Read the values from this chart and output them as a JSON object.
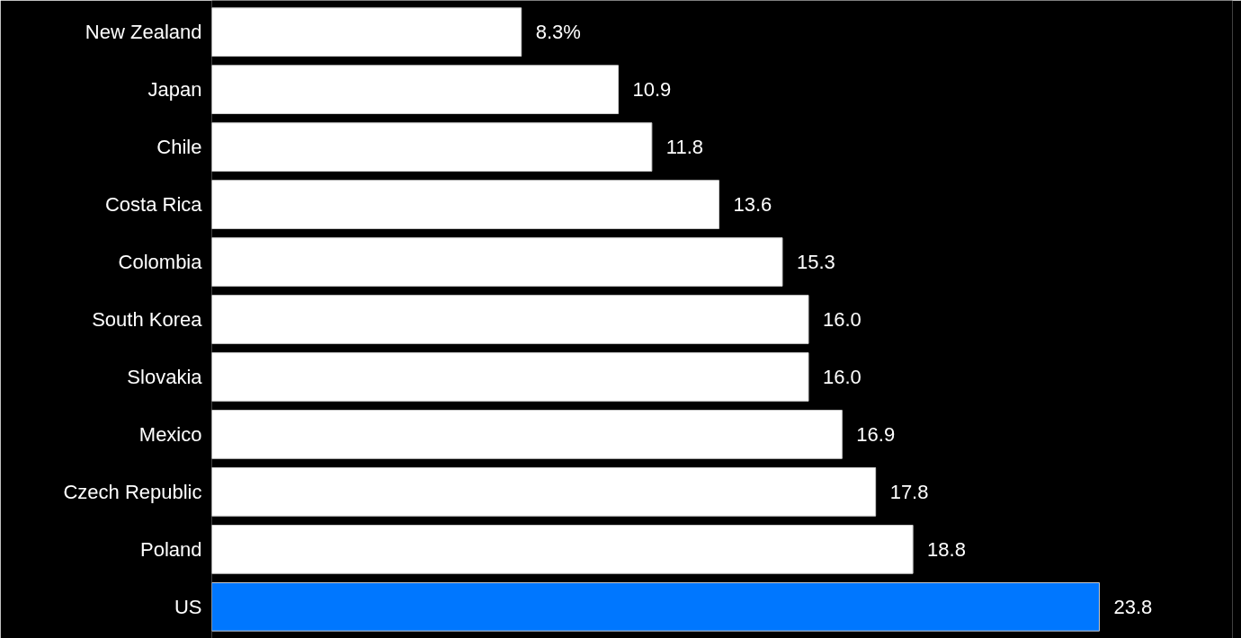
{
  "chart_data": {
    "type": "bar",
    "orientation": "horizontal",
    "categories": [
      "New Zealand",
      "Japan",
      "Chile",
      "Costa Rica",
      "Colombia",
      "South Korea",
      "Slovakia",
      "Mexico",
      "Czech Republic",
      "Poland",
      "US"
    ],
    "values": [
      8.3,
      10.9,
      11.8,
      13.6,
      15.3,
      16.0,
      16.0,
      16.9,
      17.8,
      18.8,
      23.8
    ],
    "value_labels": [
      "8.3%",
      "10.9",
      "11.8",
      "13.6",
      "15.3",
      "16.0",
      "16.0",
      "16.9",
      "17.8",
      "18.8",
      "23.8"
    ],
    "colors": [
      "#ffffff",
      "#ffffff",
      "#ffffff",
      "#ffffff",
      "#ffffff",
      "#ffffff",
      "#ffffff",
      "#ffffff",
      "#ffffff",
      "#ffffff",
      "#0077ff"
    ],
    "stacked": false
  }
}
